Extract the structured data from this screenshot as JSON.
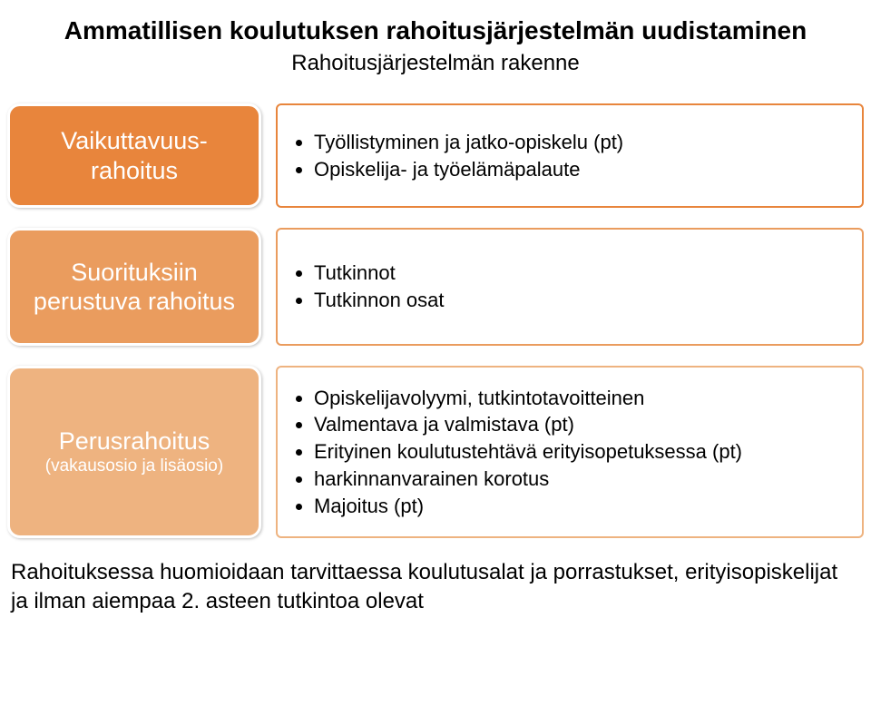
{
  "title": "Ammatillisen koulutuksen rahoitusjärjestelmän uudistaminen",
  "subtitle": "Rahoitusjärjestelmän rakenne",
  "rows": [
    {
      "left": {
        "label": "Vaikuttavuus-\nrahoitus",
        "sub": ""
      },
      "colors": {
        "box_bg": "#e8853c",
        "right_border": "#e8853c"
      },
      "right_items": [
        "Työllistyminen ja jatko-opiskelu (pt)",
        "Opiskelija- ja työelämäpalaute"
      ],
      "right_min_height": 115
    },
    {
      "left": {
        "label": "Suorituksiin perustuva rahoitus",
        "sub": ""
      },
      "colors": {
        "box_bg": "#ea9c5e",
        "right_border": "#ea9c5e"
      },
      "right_items": [
        "Tutkinnot",
        "Tutkinnon osat"
      ],
      "right_min_height": 130
    },
    {
      "left": {
        "label": "Perusrahoitus",
        "sub": "(vakausosio ja lisäosio)"
      },
      "colors": {
        "box_bg": "#eeb380",
        "right_border": "#eeb380"
      },
      "right_items": [
        "Opiskelijavolyymi, tutkintotavoitteinen",
        "Valmentava ja valmistava (pt)",
        "Erityinen koulutustehtävä erityisopetuksessa (pt)",
        "harkinnanvarainen korotus",
        "Majoitus (pt)"
      ],
      "right_min_height": 190
    }
  ],
  "footer": "Rahoituksessa huomioidaan tarvittaessa koulutusalat ja porrastukset, erityisopiskelijat ja ilman aiempaa 2. asteen tutkintoa olevat"
}
